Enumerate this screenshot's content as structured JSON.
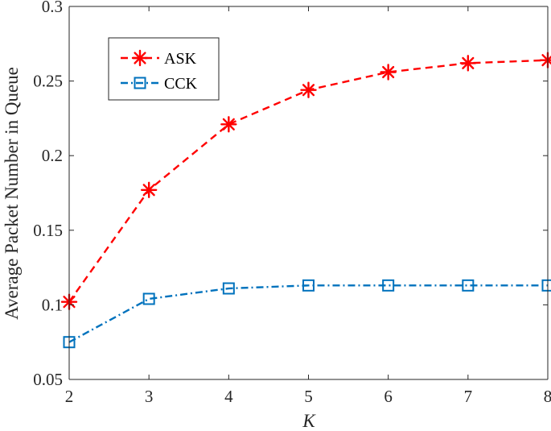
{
  "chart_data": {
    "type": "line",
    "x": [
      2,
      3,
      4,
      5,
      6,
      7,
      8
    ],
    "series": [
      {
        "name": "ASK",
        "values": [
          0.102,
          0.177,
          0.221,
          0.244,
          0.256,
          0.262,
          0.264
        ],
        "color": "#ff0000",
        "line_style": "dashed",
        "marker": "asterisk"
      },
      {
        "name": "CCK",
        "values": [
          0.075,
          0.104,
          0.111,
          0.113,
          0.113,
          0.113,
          0.113
        ],
        "color": "#0072bd",
        "line_style": "dash-dot",
        "marker": "square"
      }
    ],
    "title": "",
    "xlabel": "K",
    "ylabel": "Average Packet Number in Queue",
    "xlim": [
      2,
      8
    ],
    "ylim": [
      0.05,
      0.3
    ],
    "xticks": [
      "2",
      "3",
      "4",
      "5",
      "6",
      "7",
      "8"
    ],
    "yticks": [
      "0.05",
      "0.1",
      "0.15",
      "0.2",
      "0.25",
      "0.3"
    ],
    "grid": false,
    "legend_position": "top-left"
  }
}
